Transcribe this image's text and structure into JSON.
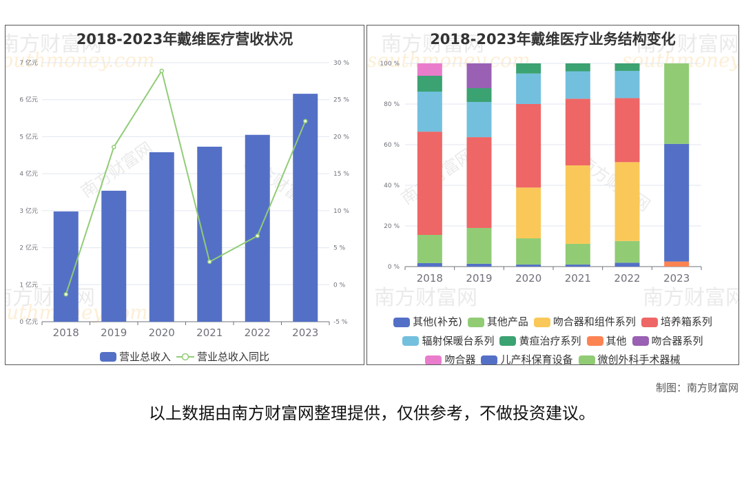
{
  "left_chart": {
    "title": "2018-2023年戴维医疗营收状况",
    "left_axis_ticks": [
      "0 亿元",
      "1 亿元",
      "2 亿元",
      "3 亿元",
      "4 亿元",
      "5 亿元",
      "6 亿元",
      "7 亿元"
    ],
    "right_axis_ticks": [
      "-5 %",
      "0 %",
      "5 %",
      "10 %",
      "15 %",
      "20 %",
      "25 %",
      "30 %"
    ],
    "legend": [
      {
        "label": "营业总收入",
        "color": "#5470c6"
      },
      {
        "label": "营业总收入同比",
        "color": "#91cc75"
      }
    ]
  },
  "right_chart": {
    "title": "2018-2023年戴维医疗业务结构变化",
    "axis_ticks": [
      "0 %",
      "20 %",
      "40 %",
      "60 %",
      "80 %",
      "100 %"
    ],
    "legend_rows": [
      [
        {
          "label": "其他(补充)",
          "color": "#5470c6"
        },
        {
          "label": "其他产品",
          "color": "#91cc75"
        },
        {
          "label": "吻合器和组件系列",
          "color": "#fac858"
        },
        {
          "label": "培养箱系列",
          "color": "#ee6666"
        }
      ],
      [
        {
          "label": "辐射保暖台系列",
          "color": "#73c0de"
        },
        {
          "label": "黄疸治疗系列",
          "color": "#3ba272"
        },
        {
          "label": "其他",
          "color": "#fc8452"
        },
        {
          "label": "吻合器系列",
          "color": "#9a60b4"
        }
      ],
      [
        {
          "label": "吻合器",
          "color": "#ea7ccc"
        },
        {
          "label": "儿产科保育设备",
          "color": "#5470c6"
        },
        {
          "label": "微创外科手术器械",
          "color": "#91cc75"
        }
      ]
    ]
  },
  "watermark": {
    "cn": "南方财富网",
    "en": "southmoney.com"
  },
  "footer": {
    "credit": "制图：南方财富网",
    "disclaimer": "以上数据由南方财富网整理提供，仅供参考，不做投资建议。"
  },
  "chart_data": [
    {
      "type": "bar+line",
      "title": "2018-2023年戴维医疗营收状况",
      "categories": [
        "2018",
        "2019",
        "2020",
        "2021",
        "2022",
        "2023"
      ],
      "series": [
        {
          "name": "营业总收入",
          "type": "bar",
          "axis": "left",
          "unit": "亿元",
          "values": [
            2.98,
            3.54,
            4.58,
            4.73,
            5.05,
            6.16
          ],
          "color": "#5470c6"
        },
        {
          "name": "营业总收入同比",
          "type": "line",
          "axis": "right",
          "unit": "%",
          "values": [
            -1.3,
            18.6,
            28.9,
            3.1,
            6.6,
            22.1
          ],
          "color": "#91cc75"
        }
      ],
      "ylim_left": [
        0,
        7
      ],
      "ylim_right": [
        -5,
        30
      ],
      "ylabel_left": "亿元",
      "ylabel_right": "%",
      "grid": true,
      "legend_position": "bottom"
    },
    {
      "type": "bar",
      "stacked": true,
      "normalized": true,
      "title": "2018-2023年戴维医疗业务结构变化",
      "categories": [
        "2018",
        "2019",
        "2020",
        "2021",
        "2022",
        "2023"
      ],
      "series": [
        {
          "name": "其他(补充)",
          "color": "#5470c6",
          "values": [
            1.7,
            1.4,
            1.0,
            1.0,
            1.9,
            0
          ]
        },
        {
          "name": "其他产品",
          "color": "#91cc75",
          "values": [
            13.9,
            17.6,
            12.9,
            10.2,
            10.7,
            0
          ]
        },
        {
          "name": "吻合器和组件系列",
          "color": "#fac858",
          "values": [
            0,
            0,
            25.0,
            38.6,
            38.8,
            0
          ]
        },
        {
          "name": "培养箱系列",
          "color": "#ee6666",
          "values": [
            50.8,
            44.7,
            41.1,
            32.8,
            31.5,
            0
          ]
        },
        {
          "name": "辐射保暖台系列",
          "color": "#73c0de",
          "values": [
            19.7,
            17.3,
            15.0,
            13.5,
            13.4,
            0
          ]
        },
        {
          "name": "黄疸治疗系列",
          "color": "#3ba272",
          "values": [
            7.8,
            6.8,
            5.0,
            3.9,
            3.7,
            0
          ]
        },
        {
          "name": "其他",
          "color": "#fc8452",
          "values": [
            0,
            0,
            0,
            0,
            0,
            2.5
          ]
        },
        {
          "name": "吻合器系列",
          "color": "#9a60b4",
          "values": [
            0,
            12.2,
            0,
            0,
            0,
            0
          ]
        },
        {
          "name": "吻合器",
          "color": "#ea7ccc",
          "values": [
            6.1,
            0,
            0,
            0,
            0,
            0
          ]
        },
        {
          "name": "儿产科保育设备",
          "color": "#5470c6",
          "values": [
            0,
            0,
            0,
            0,
            0,
            57.9
          ]
        },
        {
          "name": "微创外科手术器械",
          "color": "#91cc75",
          "values": [
            0,
            0,
            0,
            0,
            0,
            39.6
          ]
        }
      ],
      "ylim": [
        0,
        100
      ],
      "ylabel": "%",
      "grid": true,
      "legend_position": "bottom"
    }
  ]
}
